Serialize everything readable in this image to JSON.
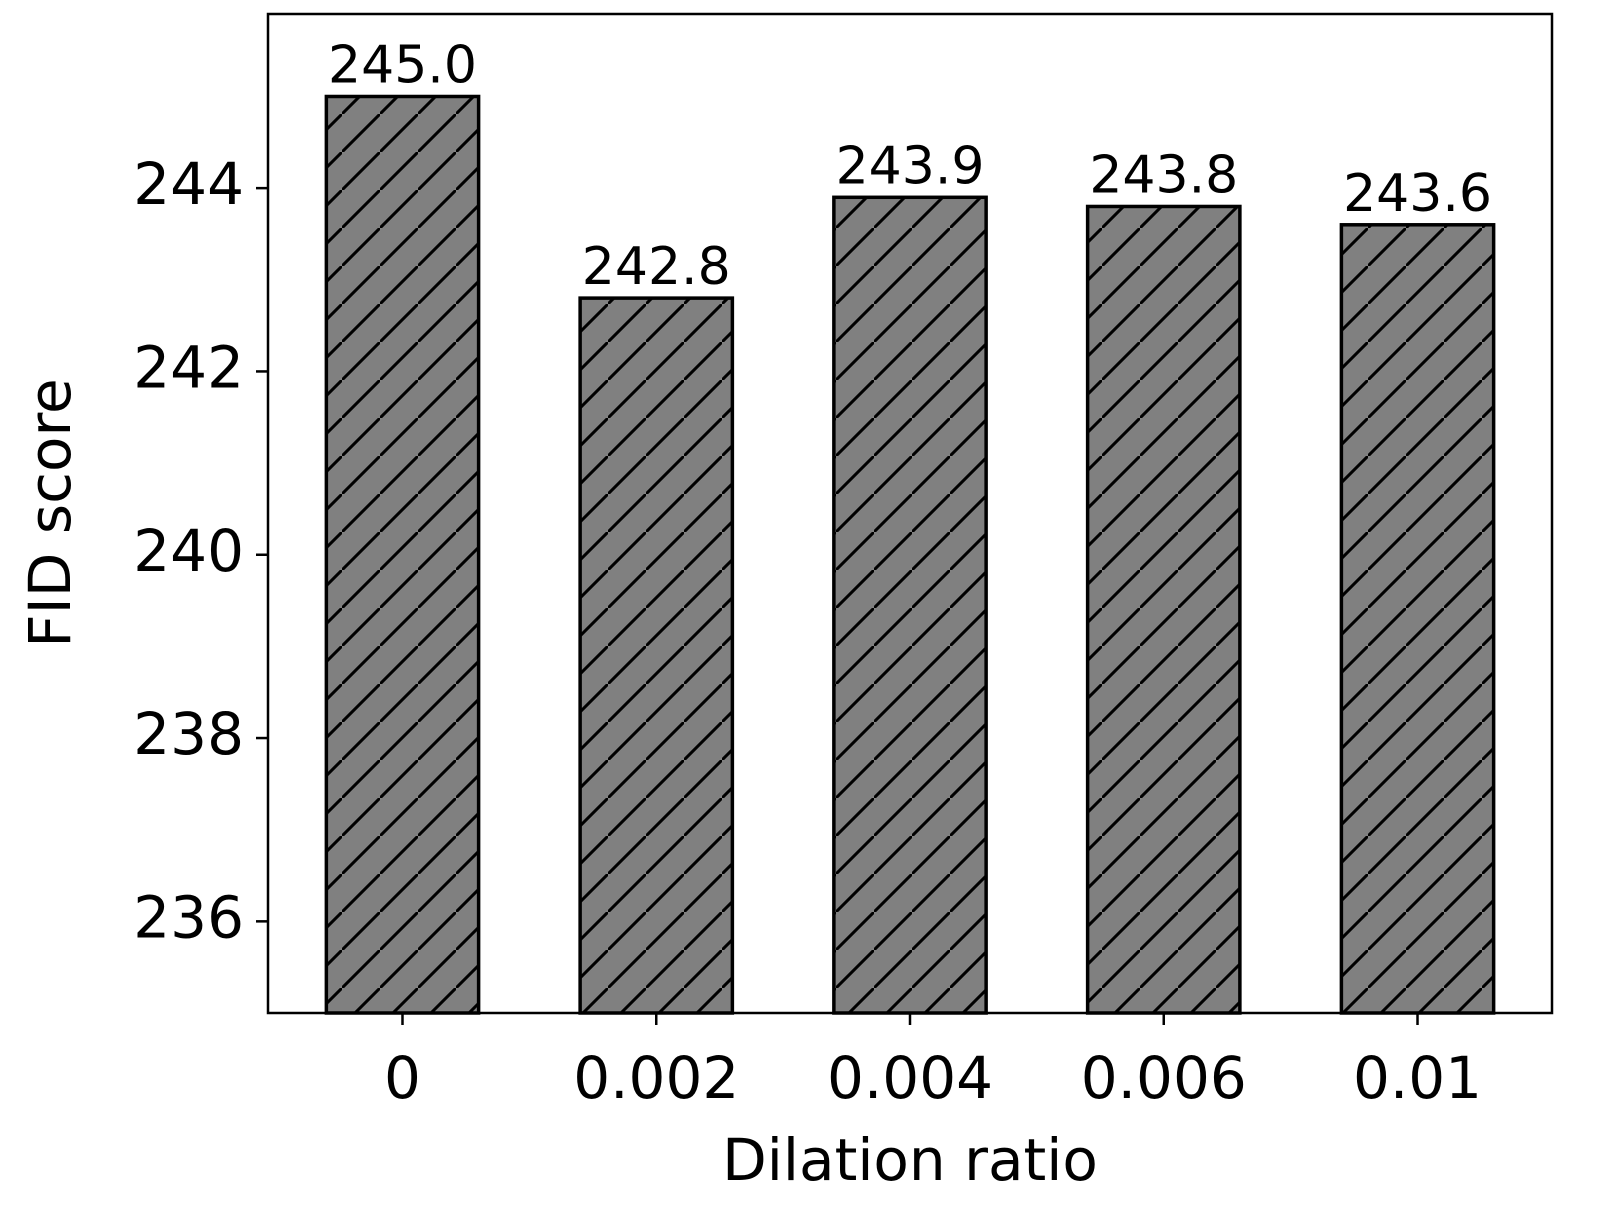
{
  "chart_data": {
    "type": "bar",
    "x_label": "Dilation ratio",
    "y_label": "FID score",
    "categories": [
      "0",
      "0.002",
      "0.004",
      "0.006",
      "0.01"
    ],
    "values": [
      245.0,
      242.8,
      243.9,
      243.8,
      243.6
    ],
    "value_labels": [
      "245.0",
      "242.8",
      "243.9",
      "243.8",
      "243.6"
    ],
    "color": "#808080",
    "edge_color": "#000000",
    "hatch": "/",
    "ylim": [
      235,
      245.9
    ],
    "yticks": [
      236,
      238,
      240,
      242,
      244
    ],
    "grid": false
  }
}
